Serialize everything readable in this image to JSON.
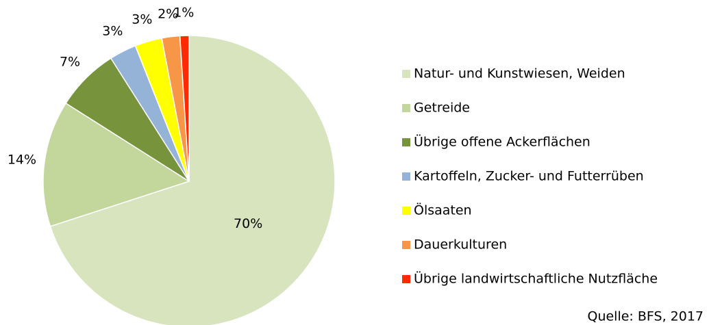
{
  "chart_data": {
    "type": "pie",
    "categories": [
      "Natur- und Kunstwiesen, Weiden",
      "Getreide",
      "Übrige offene Ackerflächen",
      "Kartoffeln, Zucker- und Futterrüben",
      "Ölsaaten",
      "Dauerkulturen",
      "Übrige landwirtschaftliche Nutzfläche"
    ],
    "values": [
      70,
      14,
      7,
      3,
      3,
      2,
      1
    ],
    "value_labels": [
      "70%",
      "14%",
      "7%",
      "3%",
      "3%",
      "2%",
      "1%"
    ],
    "colors": [
      "#d7e4bd",
      "#c3d69b",
      "#77933c",
      "#95b3d7",
      "#ffff00",
      "#f79646",
      "#ff2a00"
    ],
    "source": "Quelle: BFS, 2017"
  }
}
